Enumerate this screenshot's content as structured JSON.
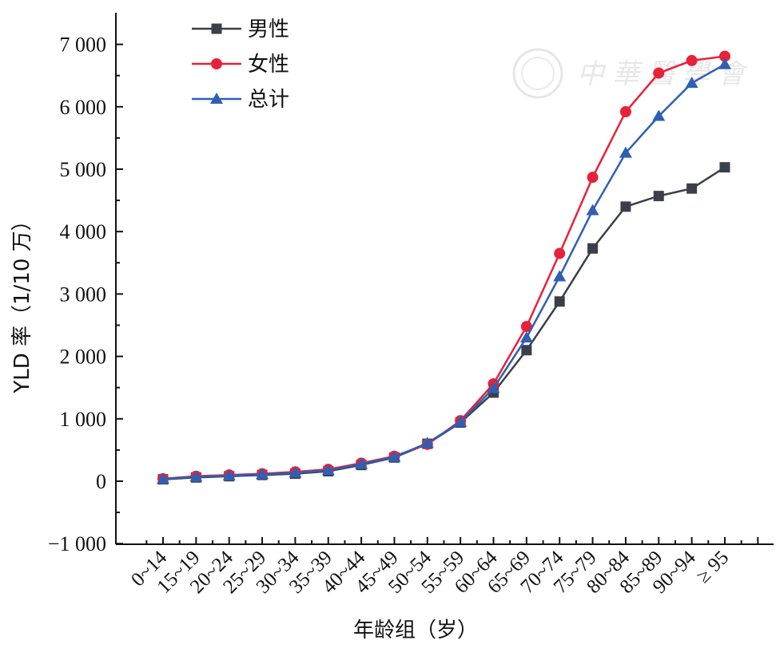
{
  "chart_data": {
    "type": "line",
    "categories": [
      "0~14",
      "15~19",
      "20~24",
      "25~29",
      "30~34",
      "35~39",
      "40~44",
      "45~49",
      "50~54",
      "55~59",
      "60~64",
      "65~69",
      "70~74",
      "75~79",
      "80~84",
      "85~89",
      "90~94",
      "≥ 95"
    ],
    "xlabel": "年龄组（岁）",
    "ylabel": "YLD 率（1/10 万）",
    "ylim": [
      -1000,
      7000
    ],
    "yticks": [
      -1000,
      0,
      1000,
      2000,
      3000,
      4000,
      5000,
      6000,
      7000
    ],
    "ytick_labels": [
      "−1 000",
      "0",
      "1 000",
      "2 000",
      "3 000",
      "4 000",
      "5 000",
      "6 000",
      "7 000"
    ],
    "legend_position": "top-left",
    "grid": false,
    "series": [
      {
        "name": "男性",
        "color": "#3a3f4a",
        "marker": "square",
        "values": [
          30,
          60,
          80,
          100,
          120,
          160,
          260,
          380,
          600,
          940,
          1420,
          2100,
          2880,
          3730,
          4400,
          4570,
          4690,
          5030
        ]
      },
      {
        "name": "女性",
        "color": "#e8213a",
        "marker": "circle",
        "values": [
          40,
          80,
          100,
          120,
          150,
          190,
          290,
          400,
          590,
          970,
          1560,
          2480,
          3650,
          4870,
          5920,
          6540,
          6740,
          6810
        ]
      },
      {
        "name": "总计",
        "color": "#2f5fb3",
        "marker": "triangle",
        "values": [
          35,
          70,
          90,
          110,
          135,
          175,
          275,
          390,
          610,
          950,
          1490,
          2300,
          3280,
          4340,
          5260,
          5850,
          6380,
          6680
        ]
      }
    ]
  },
  "watermark": {
    "text": "中華醫學會"
  }
}
